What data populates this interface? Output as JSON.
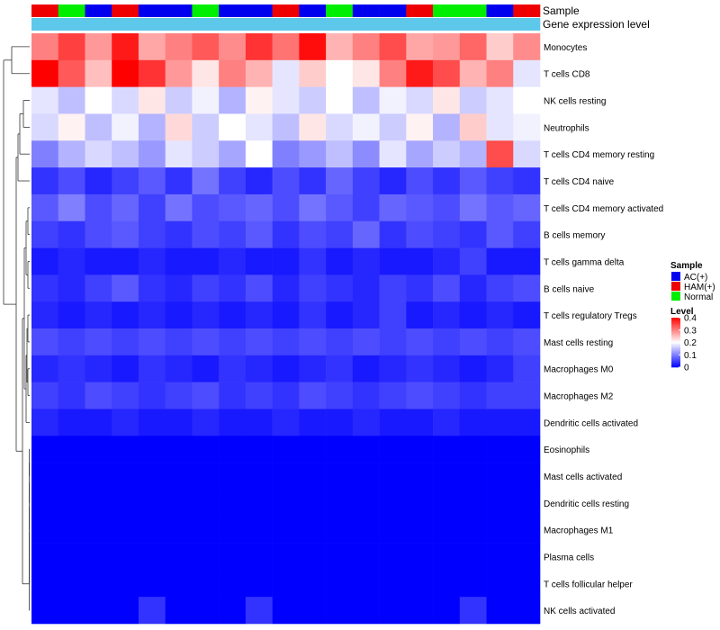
{
  "chart_data": {
    "type": "heatmap",
    "title": "",
    "columns": 19,
    "annotation_tracks": [
      {
        "name": "Sample",
        "values": [
          "HAM(+)",
          "Normal",
          "AC(+)",
          "HAM(+)",
          "AC(+)",
          "AC(+)",
          "Normal",
          "AC(+)",
          "AC(+)",
          "HAM(+)",
          "AC(+)",
          "Normal",
          "AC(+)",
          "AC(+)",
          "HAM(+)",
          "Normal",
          "Normal",
          "AC(+)",
          "HAM(+)"
        ]
      },
      {
        "name": "Gene expression level",
        "values": [
          "expression",
          "expression",
          "expression",
          "expression",
          "expression",
          "expression",
          "expression",
          "expression",
          "expression",
          "expression",
          "expression",
          "expression",
          "expression",
          "expression",
          "expression",
          "expression",
          "expression",
          "expression",
          "expression"
        ]
      }
    ],
    "rows": [
      {
        "label": "Monocytes",
        "values": [
          0.3,
          0.35,
          0.28,
          0.38,
          0.27,
          0.3,
          0.33,
          0.29,
          0.36,
          0.31,
          0.39,
          0.26,
          0.3,
          0.34,
          0.27,
          0.28,
          0.32,
          0.24,
          0.29
        ]
      },
      {
        "label": "T cells CD8",
        "values": [
          0.4,
          0.33,
          0.25,
          0.4,
          0.36,
          0.28,
          0.22,
          0.3,
          0.26,
          0.18,
          0.24,
          0.2,
          0.22,
          0.3,
          0.38,
          0.34,
          0.26,
          0.3,
          0.18
        ]
      },
      {
        "label": "NK cells resting",
        "values": [
          0.18,
          0.15,
          0.2,
          0.17,
          0.22,
          0.16,
          0.19,
          0.14,
          0.21,
          0.18,
          0.16,
          0.2,
          0.15,
          0.19,
          0.17,
          0.22,
          0.16,
          0.18,
          0.2
        ]
      },
      {
        "label": "Neutrophils",
        "values": [
          0.17,
          0.21,
          0.15,
          0.19,
          0.14,
          0.23,
          0.16,
          0.2,
          0.18,
          0.15,
          0.22,
          0.17,
          0.19,
          0.16,
          0.21,
          0.14,
          0.24,
          0.18,
          0.19
        ]
      },
      {
        "label": "T cells CD4 memory resting",
        "values": [
          0.1,
          0.14,
          0.17,
          0.15,
          0.12,
          0.18,
          0.16,
          0.13,
          0.2,
          0.1,
          0.12,
          0.15,
          0.11,
          0.18,
          0.13,
          0.16,
          0.14,
          0.34,
          0.17
        ]
      },
      {
        "label": "T cells CD4 naive",
        "values": [
          0.04,
          0.06,
          0.03,
          0.05,
          0.07,
          0.04,
          0.09,
          0.05,
          0.03,
          0.06,
          0.04,
          0.08,
          0.05,
          0.03,
          0.06,
          0.04,
          0.07,
          0.05,
          0.04
        ]
      },
      {
        "label": "T cells CD4 memory activated",
        "values": [
          0.07,
          0.1,
          0.06,
          0.08,
          0.05,
          0.09,
          0.06,
          0.07,
          0.08,
          0.06,
          0.09,
          0.07,
          0.05,
          0.08,
          0.07,
          0.06,
          0.09,
          0.07,
          0.08
        ]
      },
      {
        "label": "B cells memory",
        "values": [
          0.05,
          0.04,
          0.06,
          0.07,
          0.05,
          0.04,
          0.06,
          0.05,
          0.07,
          0.04,
          0.06,
          0.05,
          0.08,
          0.04,
          0.06,
          0.05,
          0.04,
          0.07,
          0.05
        ]
      },
      {
        "label": "T cells gamma delta",
        "values": [
          0.02,
          0.03,
          0.02,
          0.02,
          0.03,
          0.02,
          0.02,
          0.03,
          0.02,
          0.02,
          0.04,
          0.02,
          0.03,
          0.02,
          0.02,
          0.03,
          0.05,
          0.02,
          0.02
        ]
      },
      {
        "label": "B cells naive",
        "values": [
          0.04,
          0.03,
          0.05,
          0.07,
          0.04,
          0.03,
          0.05,
          0.04,
          0.06,
          0.03,
          0.05,
          0.04,
          0.03,
          0.05,
          0.04,
          0.06,
          0.03,
          0.05,
          0.06
        ]
      },
      {
        "label": "T cells regulatory  Tregs",
        "values": [
          0.03,
          0.02,
          0.03,
          0.02,
          0.03,
          0.02,
          0.03,
          0.02,
          0.03,
          0.02,
          0.04,
          0.02,
          0.03,
          0.05,
          0.02,
          0.03,
          0.02,
          0.03,
          0.02
        ]
      },
      {
        "label": "Mast cells resting",
        "values": [
          0.06,
          0.05,
          0.06,
          0.05,
          0.06,
          0.05,
          0.06,
          0.05,
          0.06,
          0.05,
          0.06,
          0.05,
          0.06,
          0.05,
          0.06,
          0.05,
          0.06,
          0.05,
          0.06
        ]
      },
      {
        "label": "Macrophages M0",
        "values": [
          0.03,
          0.04,
          0.03,
          0.02,
          0.04,
          0.03,
          0.02,
          0.04,
          0.03,
          0.02,
          0.03,
          0.04,
          0.02,
          0.03,
          0.04,
          0.03,
          0.02,
          0.03,
          0.05
        ]
      },
      {
        "label": "Macrophages M2",
        "values": [
          0.05,
          0.04,
          0.06,
          0.05,
          0.04,
          0.05,
          0.06,
          0.04,
          0.05,
          0.04,
          0.06,
          0.05,
          0.04,
          0.05,
          0.06,
          0.05,
          0.04,
          0.05,
          0.05
        ]
      },
      {
        "label": "Dendritic cells activated",
        "values": [
          0.03,
          0.02,
          0.02,
          0.03,
          0.02,
          0.02,
          0.03,
          0.02,
          0.02,
          0.03,
          0.02,
          0.02,
          0.03,
          0.02,
          0.02,
          0.03,
          0.02,
          0.02,
          0.02
        ]
      },
      {
        "label": "Eosinophils",
        "values": [
          0.0,
          0.0,
          0.0,
          0.0,
          0.0,
          0.0,
          0.0,
          0.0,
          0.0,
          0.0,
          0.0,
          0.0,
          0.0,
          0.0,
          0.0,
          0.0,
          0.0,
          0.0,
          0.0
        ]
      },
      {
        "label": "Mast cells activated",
        "values": [
          0.0,
          0.0,
          0.0,
          0.0,
          0.0,
          0.0,
          0.0,
          0.0,
          0.0,
          0.0,
          0.0,
          0.0,
          0.0,
          0.0,
          0.0,
          0.0,
          0.0,
          0.0,
          0.0
        ]
      },
      {
        "label": "Dendritic cells resting",
        "values": [
          0.0,
          0.0,
          0.0,
          0.0,
          0.0,
          0.0,
          0.0,
          0.0,
          0.0,
          0.0,
          0.0,
          0.0,
          0.0,
          0.0,
          0.0,
          0.0,
          0.0,
          0.0,
          0.0
        ]
      },
      {
        "label": "Macrophages M1",
        "values": [
          0.0,
          0.0,
          0.0,
          0.0,
          0.0,
          0.0,
          0.0,
          0.0,
          0.0,
          0.0,
          0.0,
          0.0,
          0.0,
          0.0,
          0.0,
          0.0,
          0.0,
          0.0,
          0.0
        ]
      },
      {
        "label": "Plasma cells",
        "values": [
          0.0,
          0.0,
          0.0,
          0.0,
          0.0,
          0.0,
          0.0,
          0.0,
          0.0,
          0.0,
          0.0,
          0.0,
          0.0,
          0.0,
          0.0,
          0.0,
          0.0,
          0.0,
          0.0
        ]
      },
      {
        "label": "T cells follicular helper",
        "values": [
          0.0,
          0.0,
          0.0,
          0.0,
          0.0,
          0.0,
          0.0,
          0.0,
          0.0,
          0.0,
          0.0,
          0.0,
          0.0,
          0.0,
          0.0,
          0.0,
          0.0,
          0.0,
          0.0
        ]
      },
      {
        "label": "NK cells activated",
        "values": [
          0.0,
          0.0,
          0.0,
          0.0,
          0.04,
          0.0,
          0.0,
          0.0,
          0.04,
          0.0,
          0.0,
          0.0,
          0.0,
          0.0,
          0.0,
          0.0,
          0.04,
          0.0,
          0.0
        ]
      }
    ],
    "legend": {
      "sample": {
        "title": "Sample",
        "entries": [
          {
            "label": "AC(+)",
            "color": "#0000ee"
          },
          {
            "label": "HAM(+)",
            "color": "#ee0000"
          },
          {
            "label": "Normal",
            "color": "#00ee00"
          }
        ]
      },
      "level": {
        "title": "Level",
        "range": [
          0,
          0.4
        ],
        "ticks": [
          "0.4",
          "0.3",
          "0.2",
          "0.1",
          "0"
        ],
        "tick_values": [
          0.4,
          0.3,
          0.2,
          0.1,
          0
        ],
        "colors": [
          "#0000ff",
          "#ffffff",
          "#ff0000"
        ]
      }
    },
    "gene_expression_color": "#5ec8ea",
    "dendrogram": "row"
  }
}
